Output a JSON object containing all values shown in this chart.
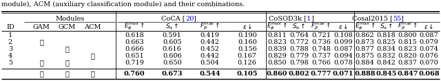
{
  "caption_text": "module), ACM (auxiliary classification module) and their combinations.",
  "rows": [
    {
      "id": "1",
      "gam": "",
      "gcm": "",
      "acm": "",
      "coca": [
        "0.618",
        "0.591",
        "0.419",
        "0.190"
      ],
      "cosod3k": [
        "0.811",
        "0.764",
        "0.721",
        "0.108"
      ],
      "cosal": [
        "0.862",
        "0.818",
        "0.800",
        "0.087"
      ]
    },
    {
      "id": "2",
      "gam": "v",
      "gcm": "",
      "acm": "",
      "coca": [
        "0.663",
        "0.605",
        "0.442",
        "0.160"
      ],
      "cosod3k": [
        "0.823",
        "0.772",
        "0.736",
        "0.099"
      ],
      "cosal": [
        "0.873",
        "0.825",
        "0.815",
        "0.079"
      ]
    },
    {
      "id": "3",
      "gam": "",
      "gcm": "v",
      "acm": "",
      "coca": [
        "0.666",
        "0.616",
        "0.452",
        "0.156"
      ],
      "cosod3k": [
        "0.839",
        "0.788",
        "0.748",
        "0.087"
      ],
      "cosal": [
        "0.877",
        "0.834",
        "0.823",
        "0.074"
      ]
    },
    {
      "id": "4",
      "gam": "",
      "gcm": "",
      "acm": "v",
      "coca": [
        "0.651",
        "0.606",
        "0.442",
        "0.167"
      ],
      "cosod3k": [
        "0.829",
        "0.779",
        "0.737",
        "0.094"
      ],
      "cosal": [
        "0.875",
        "0.832",
        "0.820",
        "0.076"
      ]
    },
    {
      "id": "5",
      "gam": "v",
      "gcm": "v",
      "acm": "",
      "coca": [
        "0.719",
        "0.650",
        "0.504",
        "0.126"
      ],
      "cosod3k": [
        "0.850",
        "0.798",
        "0.766",
        "0.078"
      ],
      "cosal": [
        "0.884",
        "0.842",
        "0.837",
        "0.070"
      ]
    }
  ],
  "best_row": {
    "id": "",
    "gam": "v",
    "gcm": "v",
    "acm": "v",
    "coca": [
      "0.760",
      "0.673",
      "0.544",
      "0.105"
    ],
    "cosod3k": [
      "0.860",
      "0.802",
      "0.777",
      "0.071"
    ],
    "cosal": [
      "0.888",
      "0.845",
      "0.847",
      "0.068"
    ]
  },
  "bg_color": "#FFFFFF",
  "text_color": "#000000",
  "blue_color": "#0000FF",
  "font_size": 7.0,
  "checkmark": "✓"
}
